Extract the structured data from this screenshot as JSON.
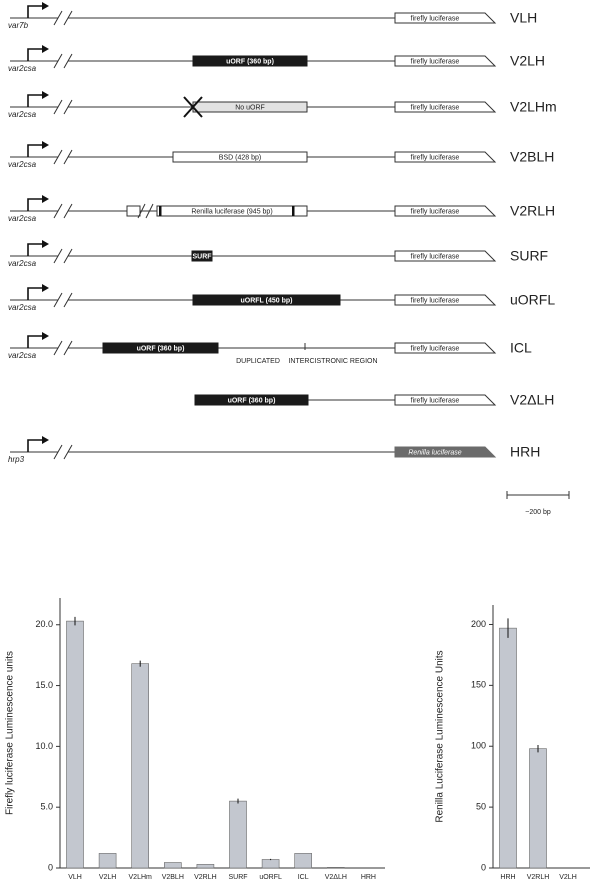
{
  "diagram": {
    "constructs": [
      {
        "name": "VLH",
        "promoter": "var7b",
        "luciferase": "firefly luciferase",
        "elements": []
      },
      {
        "name": "V2LH",
        "promoter": "var2csa",
        "luciferase": "firefly luciferase",
        "elements": [
          "uORF (360 bp)"
        ]
      },
      {
        "name": "V2LHm",
        "promoter": "var2csa",
        "luciferase": "firefly luciferase",
        "elements": [
          "No uORF"
        ]
      },
      {
        "name": "V2BLH",
        "promoter": "var2csa",
        "luciferase": "firefly luciferase",
        "elements": [
          "BSD (428 bp)"
        ]
      },
      {
        "name": "V2RLH",
        "promoter": "var2csa",
        "luciferase": "firefly luciferase",
        "elements": [
          "Renilla luciferase (945 bp)"
        ]
      },
      {
        "name": "SURF",
        "promoter": "var2csa",
        "luciferase": "firefly luciferase",
        "elements": [
          "SURF"
        ]
      },
      {
        "name": "uORFL",
        "promoter": "var2csa",
        "luciferase": "firefly luciferase",
        "elements": [
          "uORFL (450 bp)"
        ]
      },
      {
        "name": "ICL",
        "promoter": "var2csa",
        "luciferase": "firefly luciferase",
        "elements": [
          "uORF (360 bp)",
          "DUPLICATED",
          "INTERCISTRONIC REGION"
        ]
      },
      {
        "name": "V2ΔLH",
        "luciferase": "firefly luciferase",
        "elements": [
          "uORF (360 bp)"
        ]
      },
      {
        "name": "HRH",
        "promoter": "hrp3",
        "luciferase": "Renilla luciferase",
        "elements": []
      }
    ],
    "scale_label": "~200 bp"
  },
  "chart_data": [
    {
      "type": "bar",
      "ylabel": "Firefly luciferase Luminescence units",
      "categories": [
        "VLH",
        "V2LH",
        "V2LHm",
        "V2BLH",
        "V2RLH",
        "SURF",
        "uORFL",
        "ICL",
        "V2ΔLH",
        "HRH"
      ],
      "values": [
        20.3,
        1.2,
        16.8,
        0.45,
        0.3,
        5.5,
        0.7,
        1.2,
        0.05,
        0
      ],
      "errors": [
        0.35,
        0,
        0.25,
        0,
        0,
        0.2,
        0.05,
        0,
        0,
        0
      ],
      "color": "#c3c7cf",
      "ylim": [
        0,
        22.2
      ],
      "yticks": [
        0,
        {
          "value": 5,
          "label": "5.0"
        },
        {
          "value": 10,
          "label": "10.0"
        },
        {
          "value": 15,
          "label": "15.0"
        },
        {
          "value": 20,
          "label": "20.0"
        }
      ]
    },
    {
      "type": "bar",
      "ylabel": "Renilla Luciferase Luminescence Units",
      "categories": [
        "HRH",
        "V2RLH",
        "V2LH"
      ],
      "values": [
        197,
        98,
        0
      ],
      "errors": [
        8,
        3,
        0
      ],
      "color": "#c3c7cf",
      "ylim": [
        0,
        216
      ],
      "yticks": [
        0,
        50,
        100,
        150,
        200
      ]
    }
  ]
}
